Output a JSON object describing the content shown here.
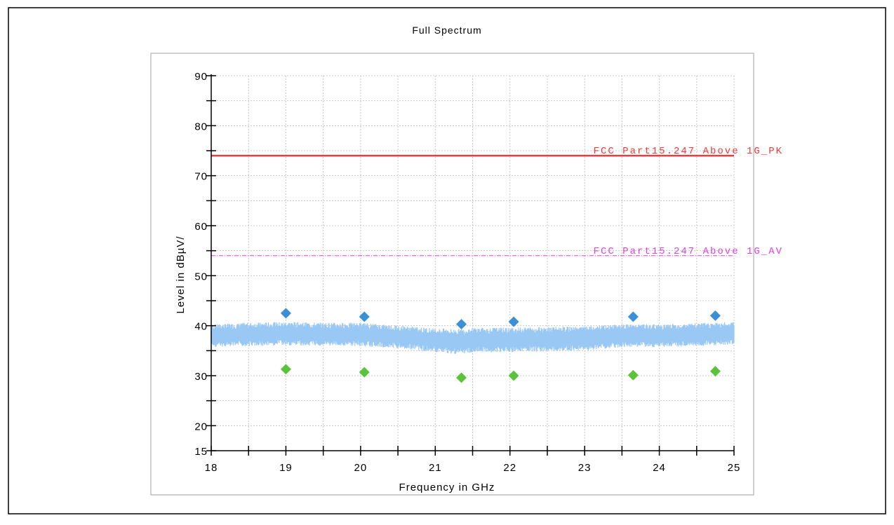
{
  "chart_data": {
    "type": "scatter",
    "title": "Full Spectrum",
    "xlabel": "Frequency in GHz",
    "ylabel": "Level in dBµV/",
    "xlim": [
      18,
      25
    ],
    "ylim": [
      15,
      90
    ],
    "x_ticks": [
      "18",
      "19",
      "20",
      "21",
      "22",
      "23",
      "24",
      "25"
    ],
    "y_ticks": [
      "15",
      "20",
      "30",
      "40",
      "50",
      "60",
      "70",
      "80",
      "90"
    ],
    "grid": true,
    "limit_lines": [
      {
        "name": "FCC Part15.247 Above 1G_PK",
        "value": 74,
        "color": "#ec3b3b"
      },
      {
        "name": "FCC Part15.247 Above 1G_AV",
        "value": 54,
        "color": "#e040e0"
      }
    ],
    "series": [
      {
        "type": "area-band",
        "color": "#99c8f5",
        "x": [
          18.0,
          18.5,
          19.0,
          19.5,
          20.0,
          20.5,
          21.0,
          21.3,
          21.5,
          22.0,
          22.5,
          23.0,
          23.5,
          24.0,
          24.5,
          25.0
        ],
        "low": [
          36.0,
          36.2,
          36.3,
          36.3,
          36.2,
          35.8,
          35.0,
          34.6,
          35.0,
          35.0,
          35.2,
          35.3,
          36.0,
          36.0,
          36.2,
          36.5
        ],
        "high": [
          40.0,
          40.3,
          40.5,
          40.3,
          40.3,
          39.8,
          39.2,
          39.0,
          39.3,
          39.3,
          39.5,
          39.5,
          40.0,
          40.0,
          40.2,
          40.5
        ]
      },
      {
        "color": "#3a8fd6",
        "x": [
          19.0,
          20.05,
          21.35,
          22.05,
          23.65,
          24.75
        ],
        "values": [
          42.5,
          41.8,
          40.3,
          40.8,
          41.8,
          42.0
        ]
      },
      {
        "color": "#5bc33a",
        "x": [
          19.0,
          20.05,
          21.35,
          22.05,
          23.65,
          24.75
        ],
        "values": [
          31.3,
          30.7,
          29.6,
          30.0,
          30.1,
          30.9
        ]
      }
    ]
  }
}
